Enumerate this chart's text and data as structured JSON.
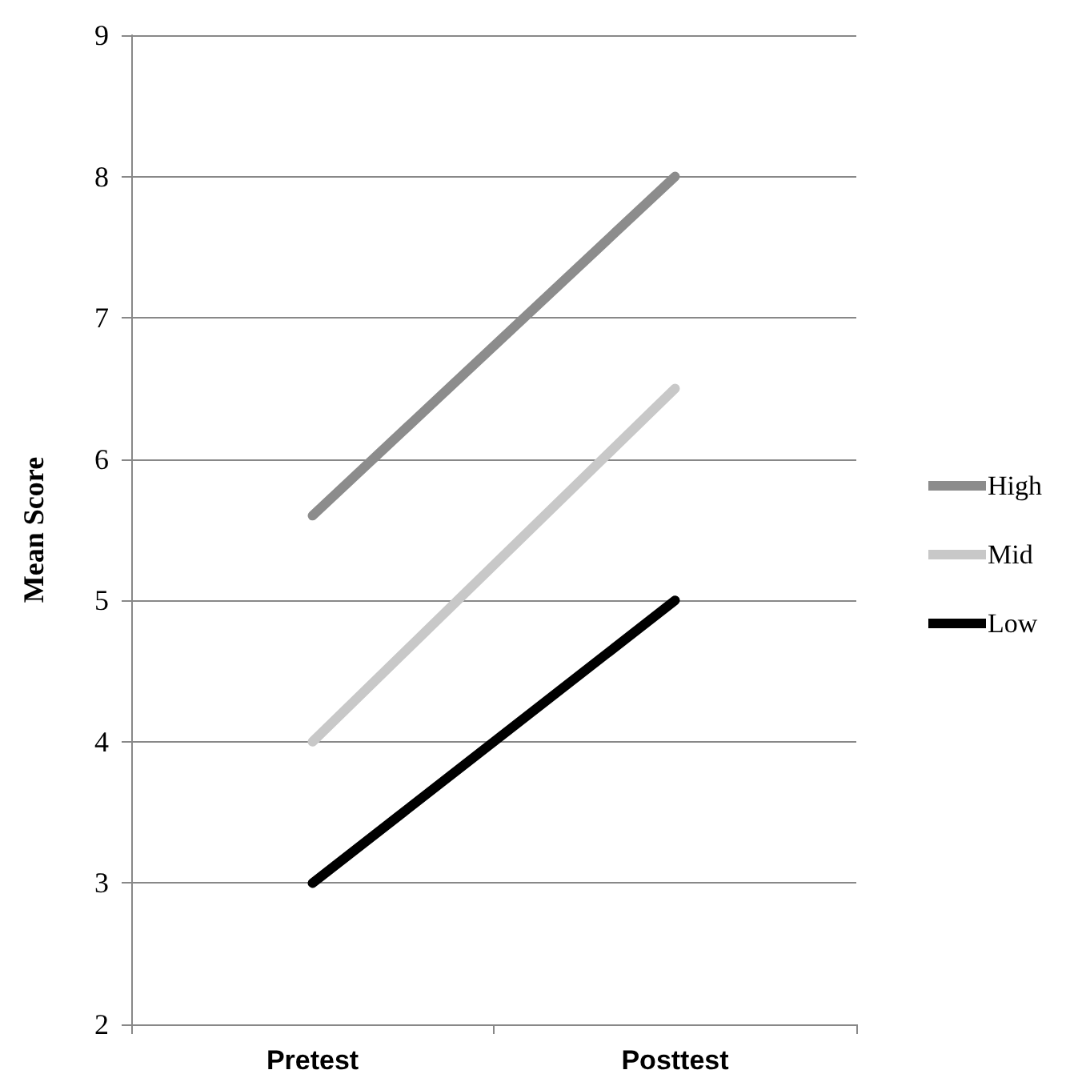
{
  "chart_data": {
    "type": "line",
    "ylabel": "Mean Score",
    "categories": [
      "Pretest",
      "Posttest"
    ],
    "series": [
      {
        "name": "High",
        "color": "#8c8c8c",
        "values": [
          5.6,
          8.0
        ]
      },
      {
        "name": "Mid",
        "color": "#c8c8c8",
        "values": [
          4.0,
          6.5
        ]
      },
      {
        "name": "Low",
        "color": "#000000",
        "values": [
          3.0,
          5.0
        ]
      }
    ],
    "ylim": [
      2,
      9
    ],
    "yticks": [
      2,
      3,
      4,
      5,
      6,
      7,
      8,
      9
    ],
    "grid": "y",
    "legend": "right",
    "marker": "none",
    "line_style": "solid"
  }
}
